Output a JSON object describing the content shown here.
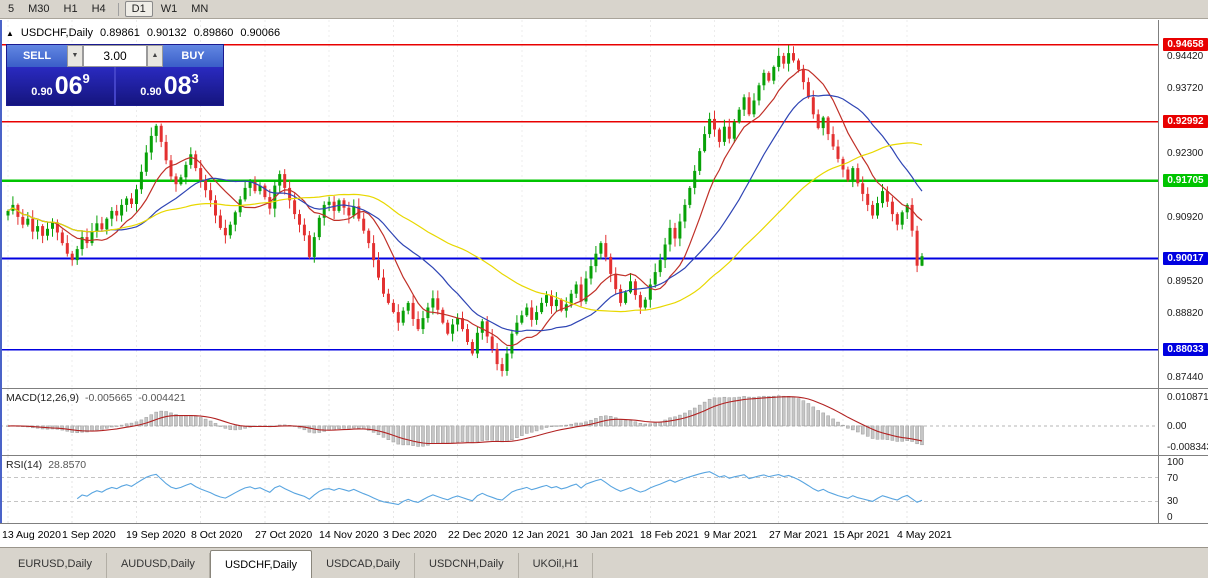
{
  "toolbar": {
    "timeframes": [
      {
        "label": "5",
        "active": false
      },
      {
        "label": "M30",
        "active": false
      },
      {
        "label": "H1",
        "active": false
      },
      {
        "label": "H4",
        "active": false
      },
      {
        "label": "D1",
        "active": true
      },
      {
        "label": "W1",
        "active": false
      },
      {
        "label": "MN",
        "active": false
      }
    ]
  },
  "header": {
    "icon": "▲",
    "symbol": "USDCHF,Daily",
    "open": "0.89861",
    "high": "0.90132",
    "low": "0.89860",
    "close": "0.90066"
  },
  "trade_panel": {
    "sell_label": "SELL",
    "buy_label": "BUY",
    "volume": "3.00",
    "spin_down_icon": "▼",
    "spin_up_icon": "▲",
    "sell_price": {
      "base": "0.90",
      "big": "06",
      "sup": "9"
    },
    "buy_price": {
      "base": "0.90",
      "big": "08",
      "sup": "3"
    }
  },
  "price_axis": {
    "labels": [
      {
        "text": "0.94420",
        "value": 0.9442
      },
      {
        "text": "0.93720",
        "value": 0.9372
      },
      {
        "text": "0.92300",
        "value": 0.923
      },
      {
        "text": "0.90920",
        "value": 0.9092
      },
      {
        "text": "0.89520",
        "value": 0.8952
      },
      {
        "text": "0.88820",
        "value": 0.8882
      },
      {
        "text": "0.87440",
        "value": 0.8744
      }
    ],
    "tags": [
      {
        "text": "0.94658",
        "value": 0.94658,
        "color": "#e80000",
        "lw": 1.6
      },
      {
        "text": "0.92992",
        "value": 0.92992,
        "color": "#e80000",
        "lw": 1.6
      },
      {
        "text": "0.91705",
        "value": 0.91705,
        "color": "#00c400",
        "lw": 2.6
      },
      {
        "text": "0.90017",
        "value": 0.90017,
        "color": "#0000e0",
        "lw": 2.0
      },
      {
        "text": "0.88033",
        "value": 0.88033,
        "color": "#0000e0",
        "lw": 1.4
      }
    ]
  },
  "dates": [
    "13 Aug 2020",
    "1 Sep 2020",
    "19 Sep 2020",
    "8 Oct 2020",
    "27 Oct 2020",
    "14 Nov 2020",
    "3 Dec 2020",
    "22 Dec 2020",
    "12 Jan 2021",
    "30 Jan 2021",
    "18 Feb 2021",
    "9 Mar 2021",
    "27 Mar 2021",
    "15 Apr 2021",
    "4 May 2021"
  ],
  "tabs": [
    {
      "label": "EURUSD,Daily",
      "active": false
    },
    {
      "label": "AUDUSD,Daily",
      "active": false
    },
    {
      "label": "USDCHF,Daily",
      "active": true
    },
    {
      "label": "USDCAD,Daily",
      "active": false
    },
    {
      "label": "USDCNH,Daily",
      "active": false
    },
    {
      "label": "UKOil,H1",
      "active": false
    }
  ],
  "indicators": {
    "macd": {
      "label": "MACD(12,26,9)",
      "value1": "-0.005665",
      "value2": "-0.004421",
      "axis_top": "0.010871",
      "axis_zero": "0.00",
      "axis_bottom": "-0.008343",
      "range": [
        -0.008343,
        0.010871
      ],
      "fast": 12,
      "slow": 26,
      "signal": 9,
      "hist_color": "#c6c6c6",
      "line_color": "#b22222"
    },
    "rsi": {
      "label": "RSI(14)",
      "value": "28.8570",
      "period": 14,
      "axis_labels": [
        "100",
        "70",
        "30",
        "0"
      ],
      "upper": 70,
      "lower": 30,
      "line_color": "#59a5e0"
    }
  },
  "chart_data": {
    "type": "candlestick",
    "symbol": "USDCHF",
    "timeframe": "Daily",
    "title_ohlc": {
      "open": 0.89861,
      "high": 0.90132,
      "low": 0.8986,
      "close": 0.90066
    },
    "y_range": [
      0.872,
      0.952
    ],
    "label_every": 13,
    "first_open": 0.9095,
    "up_color": "#07a107",
    "down_color": "#e33030",
    "moving_averages": [
      {
        "period": 10,
        "color": "#c03028"
      },
      {
        "period": 22,
        "color": "#2f45b4"
      },
      {
        "period": 48,
        "color": "#e8d800"
      }
    ],
    "wick_overrides": {
      "100": {
        "low": 0.8745
      },
      "158": {
        "high": 0.9465
      },
      "184": {
        "low": 0.8972
      },
      "185": {
        "high": 0.90132,
        "low": 0.8985
      }
    },
    "closes": [
      0.9105,
      0.9118,
      0.9092,
      0.9075,
      0.9088,
      0.906,
      0.9072,
      0.9051,
      0.9066,
      0.908,
      0.9058,
      0.9035,
      0.9012,
      0.8998,
      0.9022,
      0.9048,
      0.9035,
      0.906,
      0.9078,
      0.9065,
      0.9088,
      0.9105,
      0.9095,
      0.9118,
      0.9132,
      0.912,
      0.9152,
      0.919,
      0.9232,
      0.9268,
      0.929,
      0.9255,
      0.9215,
      0.918,
      0.9163,
      0.9178,
      0.9205,
      0.9228,
      0.9198,
      0.9172,
      0.915,
      0.9128,
      0.9095,
      0.9068,
      0.9052,
      0.9075,
      0.9102,
      0.913,
      0.9155,
      0.9168,
      0.9148,
      0.916,
      0.9135,
      0.911,
      0.916,
      0.9185,
      0.9155,
      0.9128,
      0.9098,
      0.9075,
      0.9052,
      0.9005,
      0.9048,
      0.909,
      0.9118,
      0.9125,
      0.9105,
      0.9128,
      0.9112,
      0.9095,
      0.9115,
      0.9088,
      0.9062,
      0.9035,
      0.8998,
      0.896,
      0.8925,
      0.8905,
      0.8885,
      0.8862,
      0.8888,
      0.8905,
      0.887,
      0.8848,
      0.8872,
      0.8895,
      0.8915,
      0.889,
      0.8862,
      0.8838,
      0.8858,
      0.8872,
      0.8848,
      0.882,
      0.8795,
      0.884,
      0.8865,
      0.8832,
      0.8805,
      0.8772,
      0.8757,
      0.8795,
      0.8838,
      0.8862,
      0.8878,
      0.8895,
      0.8868,
      0.8885,
      0.8905,
      0.8922,
      0.8898,
      0.8912,
      0.8888,
      0.8902,
      0.8925,
      0.8945,
      0.8908,
      0.8958,
      0.8985,
      0.9012,
      0.9035,
      0.9005,
      0.8968,
      0.8935,
      0.8905,
      0.8928,
      0.8952,
      0.8922,
      0.8895,
      0.8912,
      0.8945,
      0.8972,
      0.8998,
      0.9032,
      0.9068,
      0.9045,
      0.9082,
      0.9118,
      0.9155,
      0.9192,
      0.9235,
      0.9272,
      0.9305,
      0.9282,
      0.9255,
      0.9288,
      0.9262,
      0.9298,
      0.9325,
      0.9352,
      0.9315,
      0.9345,
      0.9378,
      0.9405,
      0.9388,
      0.9418,
      0.9442,
      0.9425,
      0.9448,
      0.9432,
      0.9412,
      0.9385,
      0.9352,
      0.9315,
      0.9285,
      0.9308,
      0.9272,
      0.9245,
      0.9218,
      0.9195,
      0.9172,
      0.9198,
      0.9165,
      0.9142,
      0.9118,
      0.9095,
      0.9122,
      0.9148,
      0.9125,
      0.9098,
      0.9075,
      0.9102,
      0.9118,
      0.9062,
      0.8986,
      0.90066
    ]
  }
}
